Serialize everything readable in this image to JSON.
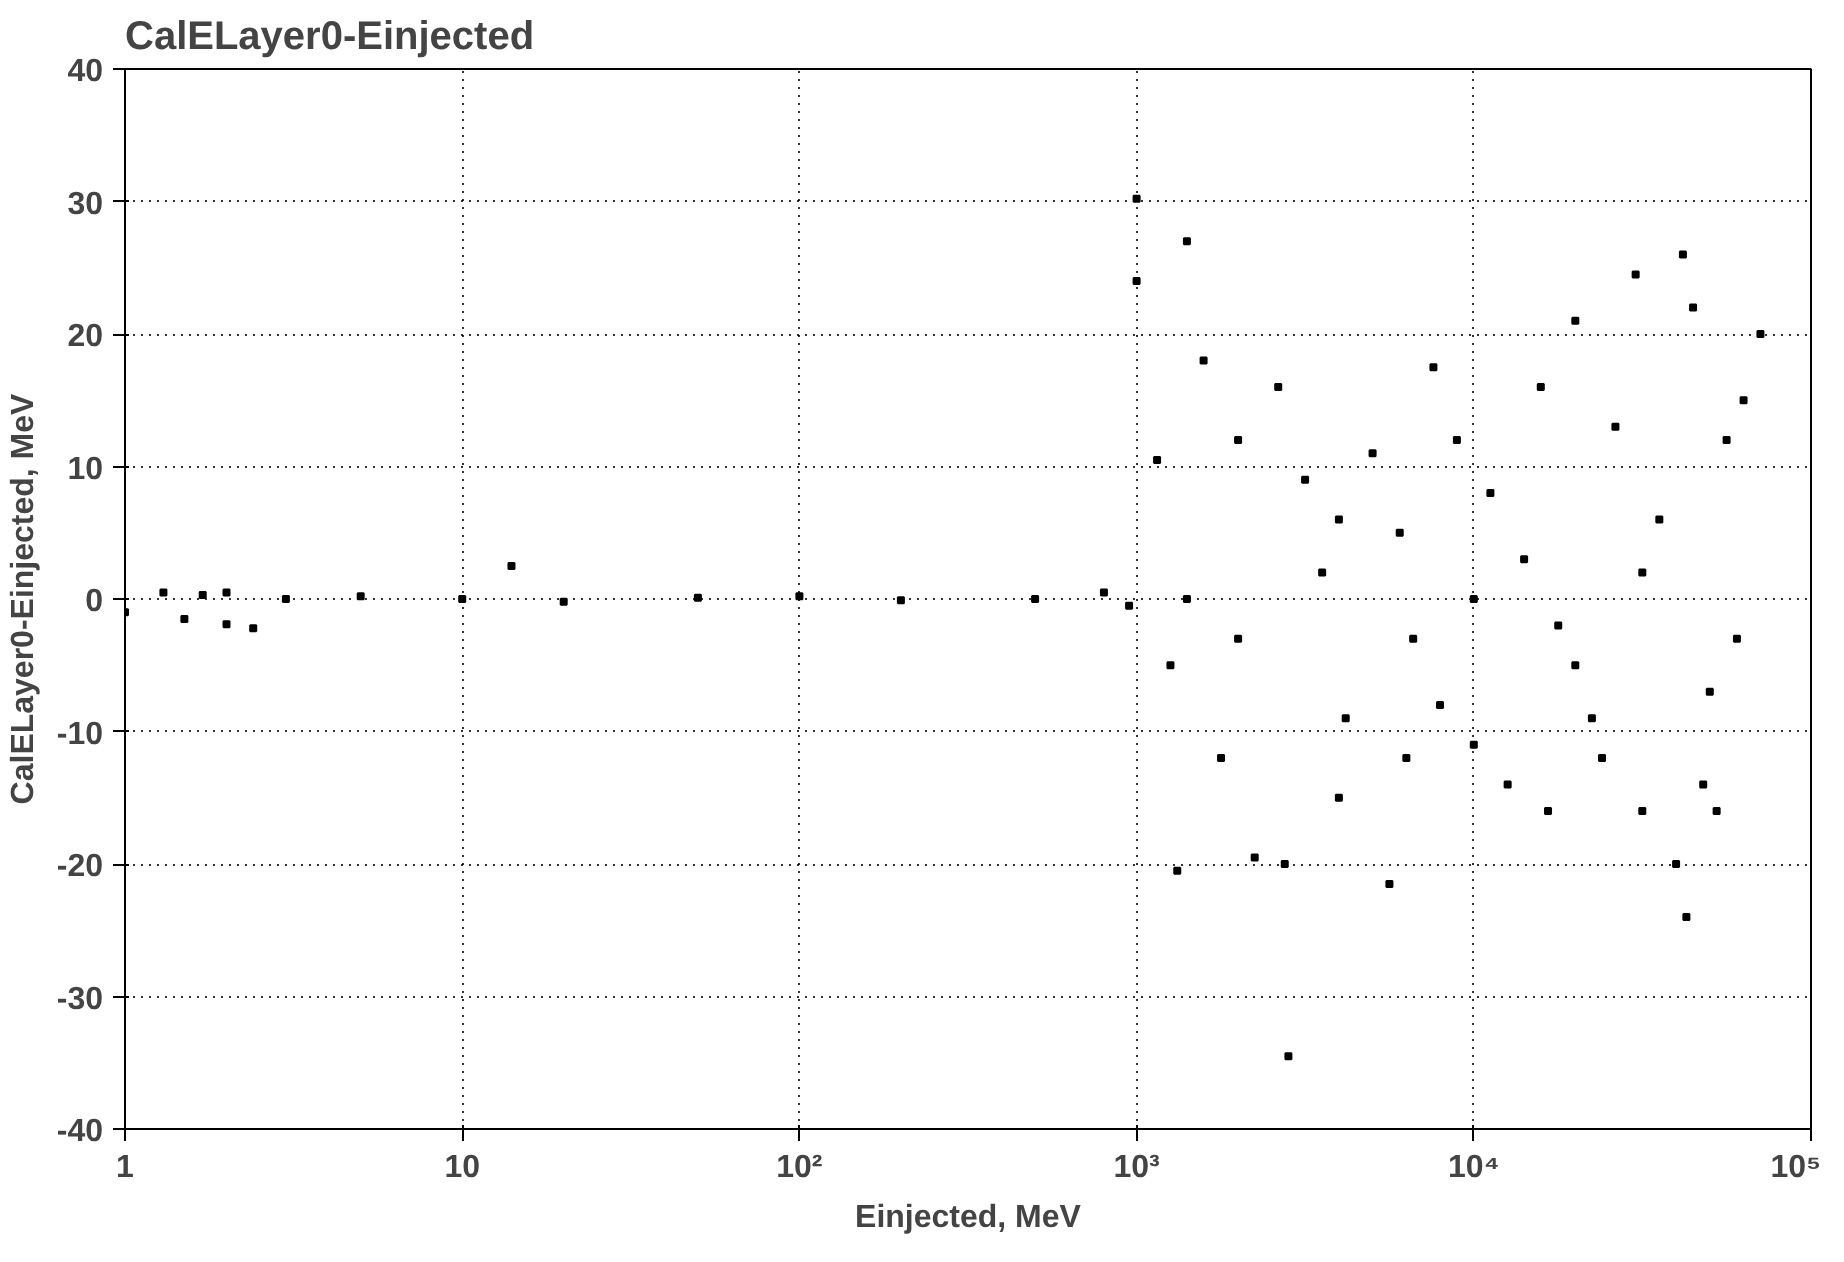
{
  "chart_data": {
    "type": "scatter",
    "title": "CalELayer0-Einjected",
    "xlabel": "Einjected, MeV",
    "ylabel": "CalELayer0-Einjected, MeV",
    "log": "x",
    "xlim": [
      1,
      100000
    ],
    "ylim": [
      -40,
      40
    ],
    "xticks": [
      1,
      10,
      {
        "value": 100,
        "label": "10²"
      },
      {
        "value": 1000,
        "label": "10³"
      },
      {
        "value": 10000,
        "label": "10⁴"
      },
      {
        "value": 100000,
        "label": "10⁵"
      }
    ],
    "yticks": [
      -40,
      -30,
      -20,
      -10,
      0,
      10,
      20,
      30,
      40
    ],
    "grid": true,
    "marker": "square",
    "series": [
      {
        "color": "#000000",
        "x": [
          1,
          1.5,
          2,
          2.4,
          1.3,
          1.7,
          2,
          3,
          5,
          10,
          14,
          20,
          50,
          100,
          200,
          500,
          800,
          950,
          1000,
          1000,
          1150,
          1260,
          1410,
          1320,
          1580,
          1780,
          2000,
          2240,
          2630,
          2750,
          2820,
          3160,
          3550,
          3980,
          4170,
          5010,
          5620,
          6030,
          6610,
          7590,
          7940,
          8910,
          10000,
          11200,
          12600,
          14100,
          15800,
          16600,
          20000,
          22400,
          24000,
          26300,
          30200,
          31600,
          35500,
          39800,
          41700,
          42700,
          44700,
          47900,
          52500,
          56200,
          60300,
          63100,
          70800,
          50100,
          20000,
          3980,
          2000,
          1410,
          10000,
          31600,
          6310,
          17800
        ],
        "values": [
          -1,
          -1.5,
          -1.9,
          -2.2,
          0.5,
          0.3,
          0.5,
          0,
          0.2,
          0,
          2.5,
          -0.2,
          0.1,
          0.2,
          -0.1,
          0,
          0.5,
          -0.5,
          30.2,
          24,
          10.5,
          -5,
          27,
          -20.5,
          18,
          -12,
          12,
          -19.5,
          16,
          -20,
          -34.5,
          9,
          2,
          -15,
          -9,
          11,
          -21.5,
          5,
          -3,
          17.5,
          -8,
          12,
          -11,
          8,
          -14,
          3,
          16,
          -16,
          21,
          -9,
          -12,
          13,
          24.5,
          -16,
          6,
          -20,
          26,
          -24,
          22,
          -14,
          -16,
          12,
          -3,
          15,
          20,
          -7,
          -5,
          6,
          -3,
          0,
          0,
          2,
          -12,
          -2
        ]
      }
    ]
  }
}
